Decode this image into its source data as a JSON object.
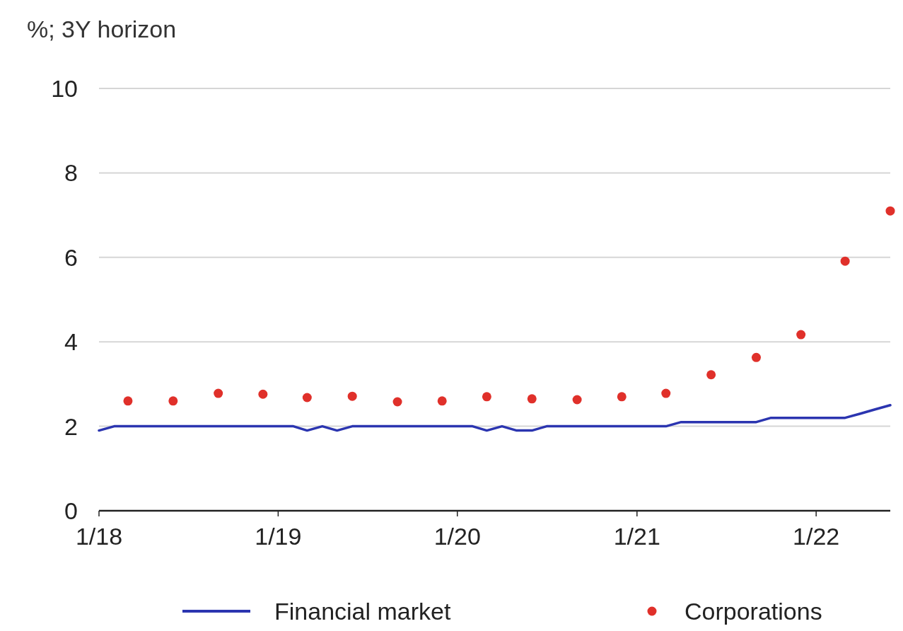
{
  "chart_data": {
    "type": "line",
    "ylabel": "%; 3Y horizon",
    "xlim": [
      "2018-01",
      "2022-06"
    ],
    "xticks": [
      {
        "value": "2018-01",
        "label": "1/18"
      },
      {
        "value": "2019-01",
        "label": "1/19"
      },
      {
        "value": "2020-01",
        "label": "1/20"
      },
      {
        "value": "2021-01",
        "label": "1/21"
      },
      {
        "value": "2022-01",
        "label": "1/22"
      }
    ],
    "ylim": [
      0,
      10
    ],
    "yticks": [
      0,
      2,
      4,
      6,
      8,
      10
    ],
    "grid": "y",
    "legend": "bottom",
    "series": [
      {
        "name": "Financial market",
        "color": "#2b35b0",
        "marker": "none",
        "line_style": "solid",
        "x": [
          "2018-01",
          "2018-02",
          "2019-02",
          "2019-03",
          "2019-04",
          "2019-05",
          "2019-06",
          "2020-02",
          "2020-03",
          "2020-04",
          "2020-05",
          "2020-06",
          "2020-07",
          "2021-03",
          "2021-04",
          "2021-09",
          "2021-10",
          "2022-03",
          "2022-04",
          "2022-05",
          "2022-06"
        ],
        "values": [
          1.9,
          2.0,
          2.0,
          1.9,
          2.0,
          1.9,
          2.0,
          2.0,
          1.9,
          2.0,
          1.9,
          1.9,
          2.0,
          2.0,
          2.1,
          2.1,
          2.2,
          2.2,
          2.3,
          2.4,
          2.5
        ]
      },
      {
        "name": "Corporations",
        "type": "scatter",
        "color": "#e0302a",
        "marker": "circle",
        "x": [
          "2018-03",
          "2018-06",
          "2018-09",
          "2018-12",
          "2019-03",
          "2019-06",
          "2019-09",
          "2019-12",
          "2020-03",
          "2020-06",
          "2020-09",
          "2020-12",
          "2021-03",
          "2021-06",
          "2021-09",
          "2021-12",
          "2022-03",
          "2022-06"
        ],
        "values": [
          2.6,
          2.6,
          2.78,
          2.76,
          2.68,
          2.71,
          2.58,
          2.6,
          2.7,
          2.65,
          2.63,
          2.7,
          2.78,
          3.22,
          3.63,
          4.17,
          5.91,
          7.1
        ]
      }
    ]
  }
}
